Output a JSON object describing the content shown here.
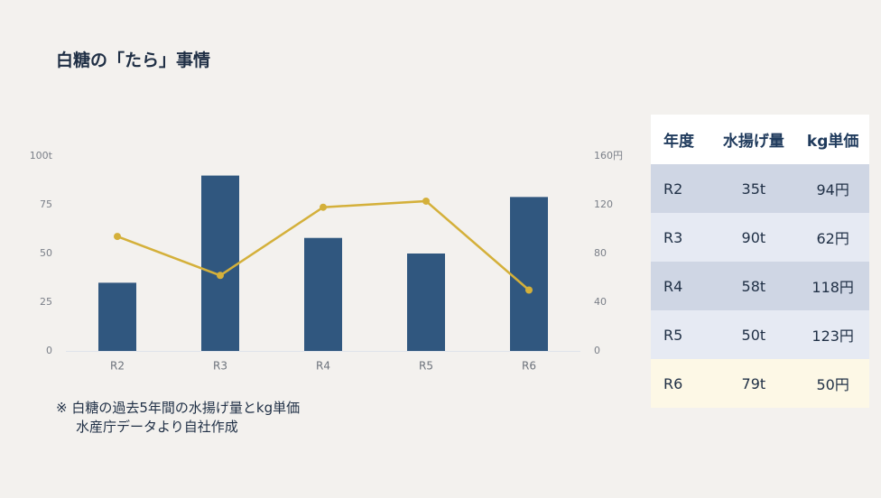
{
  "title": "白糖の「たら」事情",
  "chart_data": {
    "type": "combo",
    "categories": [
      "R2",
      "R3",
      "R4",
      "R5",
      "R6"
    ],
    "series": [
      {
        "type": "bar",
        "color": "#30577f",
        "values": [
          35,
          90,
          58,
          50,
          79
        ]
      },
      {
        "type": "line",
        "axis": "y2",
        "color": "#d4b03a",
        "values": [
          94,
          62,
          118,
          123,
          50
        ]
      }
    ],
    "ylim": [
      0,
      100
    ],
    "yticks": [
      0,
      25,
      50,
      75,
      {
        "value": 100,
        "label": "100t"
      }
    ],
    "y2lim": [
      0,
      160
    ],
    "y2ticks": [
      0,
      40,
      80,
      120,
      {
        "value": 160,
        "label": "160円"
      }
    ],
    "grid": false
  },
  "note": [
    "※ 白糖の過去5年間の水揚げ量とkg単価",
    "水産庁データより自社作成"
  ],
  "table": {
    "header": [
      "年度",
      "水揚げ量",
      "kg単価"
    ],
    "rows": [
      [
        "R2",
        "35t",
        "94円"
      ],
      [
        "R3",
        "90t",
        "62円"
      ],
      [
        "R4",
        "58t",
        "118円"
      ],
      [
        "R5",
        "50t",
        "123円"
      ],
      [
        "R6",
        "79t",
        "50円"
      ]
    ]
  }
}
